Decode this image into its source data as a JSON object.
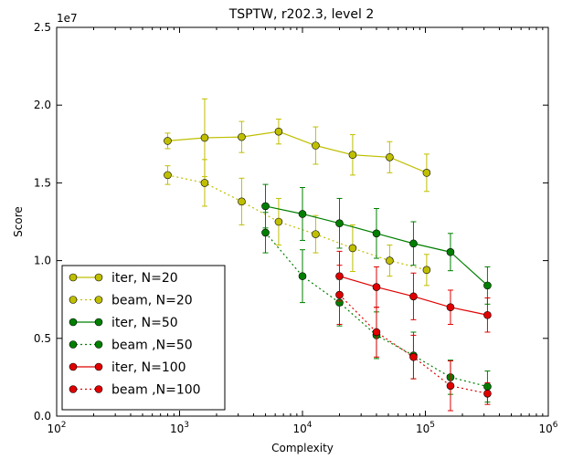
{
  "chart_data": {
    "type": "line",
    "title": "TSPTW, r202.3, level 2",
    "xlabel": "Complexity",
    "ylabel": "Score",
    "xscale": "log",
    "xlim": [
      100,
      1000000
    ],
    "ylim": [
      0,
      25000000
    ],
    "y_multiplier_label": "1e7",
    "x_ticks": [
      {
        "value": 100,
        "base": "10",
        "exp": "2"
      },
      {
        "value": 1000,
        "base": "10",
        "exp": "3"
      },
      {
        "value": 10000,
        "base": "10",
        "exp": "4"
      },
      {
        "value": 100000,
        "base": "10",
        "exp": "5"
      },
      {
        "value": 1000000,
        "base": "10",
        "exp": "6"
      }
    ],
    "y_ticks": [
      {
        "value": 0,
        "label": "0.0"
      },
      {
        "value": 5000000,
        "label": "0.5"
      },
      {
        "value": 10000000,
        "label": "1.0"
      },
      {
        "value": 15000000,
        "label": "1.5"
      },
      {
        "value": 20000000,
        "label": "2.0"
      },
      {
        "value": 25000000,
        "label": "2.5"
      }
    ],
    "legend_position": "lower-left",
    "grid": false,
    "series": [
      {
        "name": "iter, N=20",
        "color": "#bfbf00",
        "linestyle": "solid",
        "points": [
          {
            "x": 800,
            "y": 17700000,
            "err": 500000
          },
          {
            "x": 1600,
            "y": 17900000,
            "err": 2500000
          },
          {
            "x": 3200,
            "y": 17950000,
            "err": 1000000
          },
          {
            "x": 6400,
            "y": 18300000,
            "err": 800000
          },
          {
            "x": 12800,
            "y": 17400000,
            "err": 1200000
          },
          {
            "x": 25600,
            "y": 16800000,
            "err": 1300000
          },
          {
            "x": 51200,
            "y": 16650000,
            "err": 1000000
          },
          {
            "x": 102400,
            "y": 15650000,
            "err": 1200000
          }
        ]
      },
      {
        "name": "beam, N=20",
        "color": "#bfbf00",
        "linestyle": "dotted",
        "points": [
          {
            "x": 800,
            "y": 15500000,
            "err": 600000
          },
          {
            "x": 1600,
            "y": 15000000,
            "err": 1500000
          },
          {
            "x": 3200,
            "y": 13800000,
            "err": 1500000
          },
          {
            "x": 6400,
            "y": 12500000,
            "err": 1500000
          },
          {
            "x": 12800,
            "y": 11700000,
            "err": 1200000
          },
          {
            "x": 25600,
            "y": 10800000,
            "err": 1500000
          },
          {
            "x": 51200,
            "y": 10000000,
            "err": 1000000
          },
          {
            "x": 102400,
            "y": 9400000,
            "err": 1000000
          }
        ]
      },
      {
        "name": "iter, N=50",
        "color": "#007f00",
        "linestyle": "solid",
        "points": [
          {
            "x": 5000,
            "y": 13500000,
            "err": 1400000
          },
          {
            "x": 10000,
            "y": 13000000,
            "err": 1700000
          },
          {
            "x": 20000,
            "y": 12400000,
            "err": 1600000
          },
          {
            "x": 40000,
            "y": 11750000,
            "err": 1600000
          },
          {
            "x": 80000,
            "y": 11100000,
            "err": 1400000
          },
          {
            "x": 160000,
            "y": 10550000,
            "err": 1200000
          },
          {
            "x": 320000,
            "y": 8400000,
            "err": 1200000
          }
        ]
      },
      {
        "name": "beam ,N=50",
        "color": "#007f00",
        "linestyle": "dotted",
        "points": [
          {
            "x": 5000,
            "y": 11800000,
            "err": 1300000
          },
          {
            "x": 10000,
            "y": 9000000,
            "err": 1700000
          },
          {
            "x": 20000,
            "y": 7300000,
            "err": 1500000
          },
          {
            "x": 40000,
            "y": 5200000,
            "err": 1500000
          },
          {
            "x": 80000,
            "y": 3900000,
            "err": 1500000
          },
          {
            "x": 160000,
            "y": 2500000,
            "err": 1100000
          },
          {
            "x": 320000,
            "y": 1900000,
            "err": 1000000
          }
        ]
      },
      {
        "name": "iter, N=100",
        "color": "#e00000",
        "linestyle": "solid",
        "points": [
          {
            "x": 20000,
            "y": 9000000,
            "err": 1600000
          },
          {
            "x": 40000,
            "y": 8300000,
            "err": 1300000
          },
          {
            "x": 80000,
            "y": 7700000,
            "err": 1500000
          },
          {
            "x": 160000,
            "y": 7000000,
            "err": 1100000
          },
          {
            "x": 320000,
            "y": 6500000,
            "err": 1100000
          }
        ]
      },
      {
        "name": "beam ,N=100",
        "color": "#e00000",
        "linestyle": "dotted",
        "points": [
          {
            "x": 20000,
            "y": 7800000,
            "err": 1900000
          },
          {
            "x": 40000,
            "y": 5400000,
            "err": 1600000
          },
          {
            "x": 80000,
            "y": 3800000,
            "err": 1400000
          },
          {
            "x": 160000,
            "y": 1950000,
            "err": 1600000
          },
          {
            "x": 320000,
            "y": 1450000,
            "err": 700000
          }
        ]
      }
    ]
  }
}
